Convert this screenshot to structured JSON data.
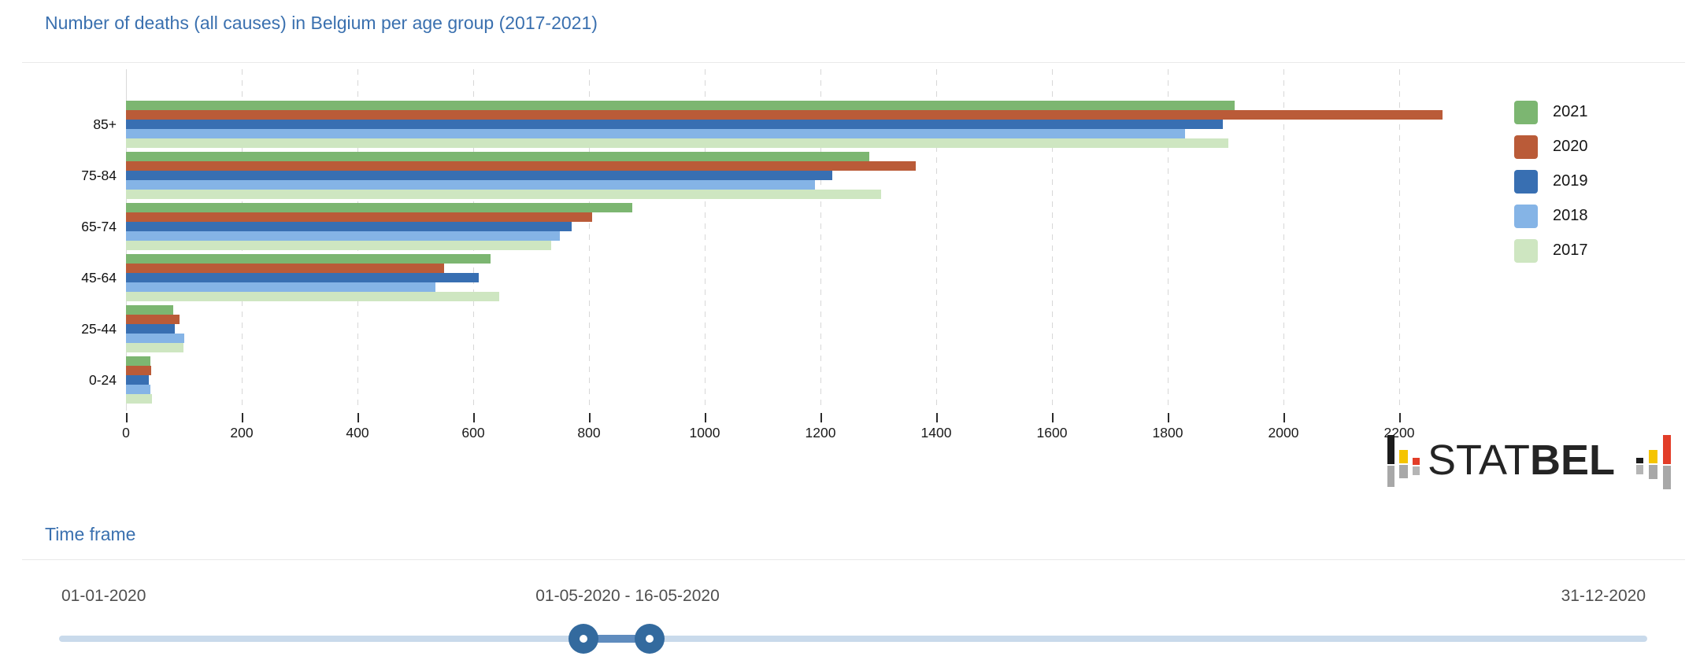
{
  "header": {
    "title": "Number of deaths (all causes) in Belgium per age group (2017-2021)"
  },
  "chart_data": {
    "type": "bar",
    "orientation": "horizontal",
    "title": "Number of deaths (all causes) in Belgium per age group (2017-2021)",
    "categories": [
      "85+",
      "75-84",
      "65-74",
      "45-64",
      "25-44",
      "0-24"
    ],
    "series": [
      {
        "name": "2021",
        "color": "#7CB671",
        "values": [
          1915,
          1285,
          875,
          630,
          82,
          42
        ]
      },
      {
        "name": "2020",
        "color": "#BA5B38",
        "values": [
          2275,
          1365,
          805,
          550,
          92,
          44
        ]
      },
      {
        "name": "2019",
        "color": "#386FB2",
        "values": [
          1895,
          1220,
          770,
          610,
          85,
          40
        ]
      },
      {
        "name": "2018",
        "color": "#85B4E6",
        "values": [
          1830,
          1190,
          750,
          535,
          100,
          42
        ]
      },
      {
        "name": "2017",
        "color": "#CEE6C1",
        "values": [
          1905,
          1305,
          735,
          645,
          99,
          45
        ]
      }
    ],
    "xlim": [
      0,
      2200
    ],
    "x_ticks": [
      0,
      200,
      400,
      600,
      800,
      1000,
      1200,
      1400,
      1600,
      1800,
      2000,
      2200
    ],
    "grid": "vertical-dashed",
    "legend_position": "top-right"
  },
  "logo": {
    "text_regular": "STAT",
    "text_bold": "BEL",
    "colors": {
      "black": "#1C1C1C",
      "yellow": "#F5C400",
      "red": "#E23D28",
      "gray": "#A8A8A8",
      "lightgray": "#B5B5B5"
    }
  },
  "timeframe": {
    "heading": "Time frame",
    "min_label": "01-01-2020",
    "selected_range_label": "01-05-2020 - 16-05-2020",
    "max_label": "31-12-2020",
    "slider": {
      "handle_positions_pct": [
        33.0,
        37.2
      ],
      "track_color": "#C9DAEB",
      "range_color": "#5F8CBE",
      "handle_color": "#336A9E"
    }
  },
  "colors": {
    "title_blue": "#3A70AF",
    "divider": "#E9E9E9",
    "axis_text": "#1A1A1A",
    "date_text": "#4F4F4F",
    "grid": "#D7D7D7"
  }
}
